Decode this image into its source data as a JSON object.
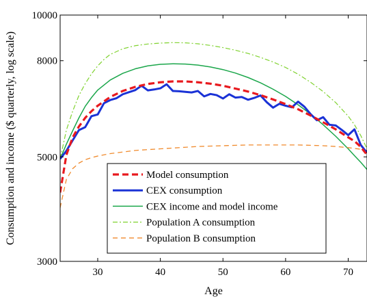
{
  "chart_data": {
    "type": "line",
    "title": "",
    "xlabel": "Age",
    "ylabel": "Consumption and income ($ quarterly, log scale)",
    "xlim": [
      24,
      73
    ],
    "ylim": [
      3000,
      10000
    ],
    "y_scale": "log",
    "grid": false,
    "legend_position": "lower-left",
    "x_ticks": [
      30,
      40,
      50,
      60,
      70
    ],
    "x_tick_labels": [
      "30",
      "40",
      "50",
      "60",
      "70"
    ],
    "y_ticks": [
      3000,
      5000,
      8000,
      10000
    ],
    "y_tick_labels": [
      "3000",
      "5000",
      "8000",
      "10000"
    ],
    "series": [
      {
        "name": "Model consumption",
        "color": "#e8191e",
        "style": "dashed-thick",
        "x": [
          24,
          25,
          26,
          27,
          28,
          29,
          30,
          32,
          34,
          36,
          38,
          40,
          42,
          44,
          46,
          48,
          50,
          52,
          54,
          56,
          58,
          60,
          62,
          64,
          66,
          68,
          70,
          71,
          72,
          73
        ],
        "y": [
          4200,
          5050,
          5500,
          5800,
          6050,
          6250,
          6420,
          6700,
          6900,
          7040,
          7140,
          7200,
          7230,
          7230,
          7200,
          7150,
          7080,
          6980,
          6880,
          6760,
          6620,
          6470,
          6310,
          6120,
          5920,
          5720,
          5500,
          5400,
          5250,
          5050
        ]
      },
      {
        "name": "CEX consumption",
        "color": "#1a32d6",
        "style": "solid-thick",
        "x": [
          24,
          25,
          26,
          27,
          28,
          29,
          30,
          31,
          32,
          33,
          34,
          35,
          36,
          37,
          38,
          39,
          40,
          41,
          42,
          43,
          44,
          45,
          46,
          47,
          48,
          49,
          50,
          51,
          52,
          53,
          54,
          55,
          56,
          57,
          58,
          59,
          60,
          61,
          62,
          63,
          64,
          65,
          66,
          67,
          68,
          69,
          70,
          71,
          72,
          73
        ],
        "y": [
          4950,
          5150,
          5420,
          5700,
          5780,
          6100,
          6150,
          6500,
          6600,
          6660,
          6790,
          6860,
          6930,
          7080,
          6920,
          6950,
          6990,
          7130,
          6900,
          6890,
          6870,
          6850,
          6900,
          6720,
          6800,
          6760,
          6650,
          6790,
          6680,
          6700,
          6610,
          6670,
          6750,
          6530,
          6360,
          6480,
          6420,
          6370,
          6550,
          6390,
          6160,
          5980,
          6070,
          5850,
          5830,
          5700,
          5560,
          5720,
          5300,
          5100
        ]
      },
      {
        "name": "CEX income and model income",
        "color": "#1aa64a",
        "style": "solid-thin",
        "x": [
          24,
          25,
          26,
          27,
          28,
          29,
          30,
          32,
          34,
          36,
          38,
          40,
          42,
          44,
          46,
          48,
          50,
          52,
          54,
          56,
          58,
          60,
          62,
          64,
          66,
          68,
          70,
          71,
          72,
          73
        ],
        "y": [
          4950,
          5320,
          5680,
          6050,
          6400,
          6680,
          6930,
          7280,
          7520,
          7690,
          7800,
          7860,
          7880,
          7870,
          7830,
          7760,
          7660,
          7530,
          7370,
          7180,
          6960,
          6720,
          6450,
          6160,
          5850,
          5530,
          5200,
          5030,
          4870,
          4700
        ]
      },
      {
        "name": "Population A consumption",
        "color": "#7fd22e",
        "style": "dash-dot",
        "x": [
          24,
          25,
          26,
          27,
          28,
          29,
          30,
          31,
          32,
          34,
          36,
          38,
          40,
          42,
          44,
          46,
          48,
          50,
          52,
          54,
          56,
          58,
          60,
          62,
          64,
          66,
          68,
          70,
          71,
          72,
          73
        ],
        "y": [
          4950,
          5700,
          6250,
          6750,
          7150,
          7500,
          7800,
          8050,
          8250,
          8480,
          8610,
          8680,
          8720,
          8740,
          8730,
          8690,
          8620,
          8530,
          8420,
          8290,
          8130,
          7950,
          7740,
          7490,
          7200,
          6880,
          6520,
          6100,
          5850,
          5550,
          5200
        ]
      },
      {
        "name": "Population B consumption",
        "color": "#f08a2c",
        "style": "dashed-thin",
        "x": [
          24,
          25,
          26,
          27,
          28,
          29,
          30,
          32,
          34,
          36,
          38,
          40,
          42,
          44,
          46,
          48,
          50,
          52,
          54,
          56,
          58,
          60,
          62,
          64,
          66,
          68,
          70,
          71,
          72,
          73
        ],
        "y": [
          3900,
          4480,
          4720,
          4850,
          4930,
          4980,
          5020,
          5080,
          5120,
          5160,
          5180,
          5200,
          5220,
          5240,
          5260,
          5270,
          5280,
          5290,
          5300,
          5300,
          5300,
          5300,
          5300,
          5290,
          5280,
          5260,
          5230,
          5210,
          5190,
          5160
        ]
      }
    ]
  }
}
